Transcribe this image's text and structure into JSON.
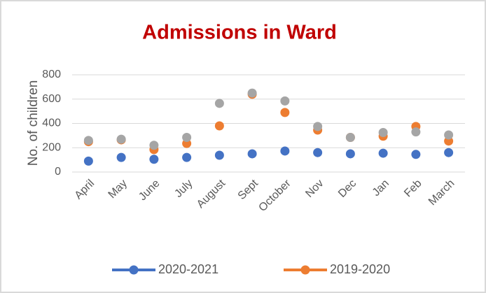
{
  "chart_data": {
    "type": "line",
    "title": "Admissions in Ward",
    "y_label": "No. of children",
    "categories": [
      "April",
      "May",
      "June",
      "July",
      "August",
      "Sept",
      "October",
      "Nov",
      "Dec",
      "Jan",
      "Feb",
      "March"
    ],
    "series": [
      {
        "name": "2020-2021",
        "color": "#4472c4",
        "values": [
          90,
          120,
          105,
          120,
          138,
          150,
          173,
          160,
          150,
          155,
          145,
          160
        ]
      },
      {
        "name": "2019-2020",
        "color": "#ed7d31",
        "values": [
          250,
          265,
          185,
          235,
          380,
          640,
          490,
          345,
          285,
          295,
          375,
          255
        ]
      },
      {
        "color": "#a5a5a5",
        "values": [
          260,
          270,
          220,
          285,
          565,
          650,
          585,
          375,
          285,
          325,
          330,
          305
        ]
      }
    ],
    "ylim": [
      0,
      800
    ],
    "yticks": [
      0,
      200,
      400,
      600,
      800
    ],
    "grid": true
  }
}
